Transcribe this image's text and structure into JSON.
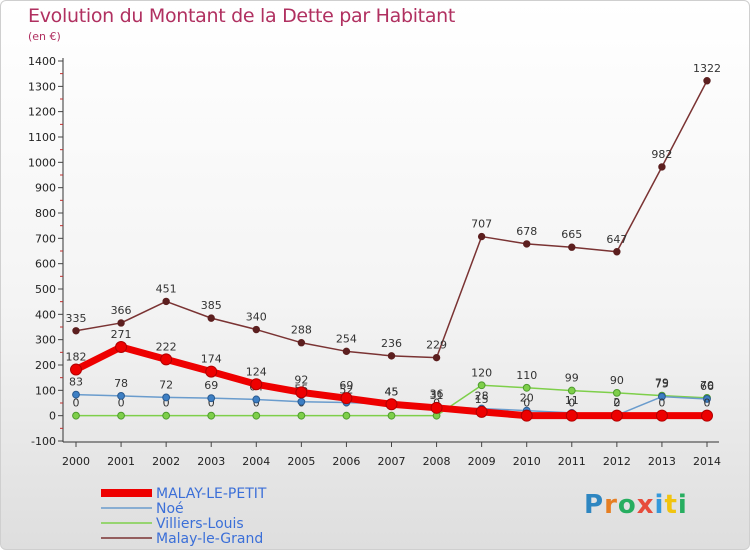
{
  "header": {
    "title": "Evolution du Montant de la Dette par Habitant",
    "unit": "(en €)"
  },
  "brand": {
    "name": "Proxiti",
    "letters": [
      "P",
      "r",
      "o",
      "x",
      "i",
      "t",
      "i"
    ],
    "colors": [
      "#2e86c1",
      "#e67e22",
      "#27ae60",
      "#e74c3c",
      "#3498db",
      "#f1c40f",
      "#27ae60"
    ]
  },
  "chart_data": {
    "type": "line",
    "title": "Evolution du Montant de la Dette par Habitant",
    "ylabel": "(en €)",
    "xlabel": "",
    "ylim": [
      -100,
      1400
    ],
    "yticks": [
      -100,
      0,
      100,
      200,
      300,
      400,
      500,
      600,
      700,
      800,
      900,
      1000,
      1100,
      1200,
      1300,
      1400
    ],
    "categories": [
      "2000",
      "2001",
      "2002",
      "2003",
      "2004",
      "2005",
      "2006",
      "2007",
      "2008",
      "2009",
      "2010",
      "2011",
      "2012",
      "2013",
      "2014"
    ],
    "series": [
      {
        "name": "Malay-le-Grand",
        "color": "#7a3333",
        "values": [
          335,
          366,
          451,
          385,
          340,
          288,
          254,
          236,
          229,
          707,
          678,
          665,
          647,
          982,
          1322
        ],
        "labels": [
          "335",
          "366",
          "451",
          "385",
          "340",
          "288",
          "254",
          "236",
          "229",
          "707",
          "678",
          "665",
          "647",
          "982",
          "1322"
        ]
      },
      {
        "name": "Villiers-Louis",
        "color": "#7ecf4a",
        "values": [
          0,
          0,
          0,
          0,
          0,
          0,
          0,
          0,
          0,
          120,
          110,
          99,
          90,
          79,
          70
        ],
        "labels": [
          "0",
          "0",
          "0",
          "0",
          "0",
          "0",
          "0",
          "0",
          "0",
          "120",
          "110",
          "99",
          "90",
          "79",
          "70"
        ]
      },
      {
        "name": "Noé",
        "color": "#6a9ccd",
        "values": [
          83,
          78,
          72,
          69,
          64,
          55,
          52,
          45,
          36,
          28,
          20,
          11,
          2,
          75,
          66
        ],
        "labels": [
          "83",
          "78",
          "72",
          "69",
          "64",
          "55",
          "52",
          "45",
          "36",
          "28",
          "20",
          "11",
          "2",
          "75",
          "66"
        ]
      },
      {
        "name": "MALAY-LE-PETIT",
        "color": "#ee0000",
        "values": [
          182,
          271,
          222,
          174,
          124,
          92,
          69,
          45,
          31,
          15,
          0,
          0,
          0,
          0,
          0
        ],
        "labels": [
          "182",
          "271",
          "222",
          "174",
          "124",
          "92",
          "69",
          "45",
          "31",
          "15",
          "0",
          "0",
          "0",
          "0",
          "0"
        ]
      }
    ],
    "legend": [
      "MALAY-LE-PETIT",
      "Noé",
      "Villiers-Louis",
      "Malay-le-Grand"
    ],
    "legend_position": "bottom-left",
    "grid": false
  }
}
